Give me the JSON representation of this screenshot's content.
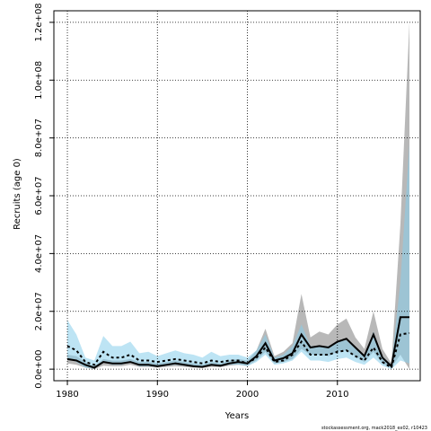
{
  "chart_data": {
    "type": "area",
    "xlabel": "Years",
    "ylabel": "Recruits (age 0)",
    "xlim": [
      1978.5,
      2019.2
    ],
    "ylim": [
      -4000000,
      124000000
    ],
    "x_ticks": [
      1980,
      1990,
      2000,
      2010
    ],
    "x_tick_labels": [
      "1980",
      "1990",
      "2000",
      "2010"
    ],
    "y_ticks": [
      0,
      20000000,
      40000000,
      60000000,
      80000000,
      100000000,
      120000000
    ],
    "y_tick_labels": [
      "0.0e+00",
      "2.0e+07",
      "4.0e+07",
      "6.0e+07",
      "8.0e+07",
      "1.0e+08",
      "1.2e+08"
    ],
    "grid": true,
    "credit": "stockassessment.org, mack2018_ex02, r10423",
    "series": [
      {
        "color": "#000000",
        "band_color": "#555555",
        "x": [
          1980,
          1981,
          1982,
          1983,
          1984,
          1985,
          1986,
          1987,
          1988,
          1989,
          1990,
          1991,
          1992,
          1993,
          1994,
          1995,
          1996,
          1997,
          1998,
          1999,
          2000,
          2001,
          2002,
          2003,
          2004,
          2005,
          2006,
          2007,
          2008,
          2009,
          2010,
          2011,
          2012,
          2013,
          2014,
          2015,
          2016,
          2017,
          2018
        ],
        "values": [
          3500000,
          3000000,
          1500000,
          500000,
          2500000,
          2000000,
          2000000,
          2500000,
          1500000,
          1500000,
          1000000,
          1500000,
          2000000,
          1500000,
          1000000,
          800000,
          1500000,
          1200000,
          2000000,
          2500000,
          2000000,
          4500000,
          9000000,
          3000000,
          3800000,
          5500000,
          12000000,
          7500000,
          8000000,
          7500000,
          9500000,
          10500000,
          7500000,
          4500000,
          12000000,
          4000000,
          1000000,
          18000000,
          18000000
        ],
        "lower": [
          2000000,
          1500000,
          500000,
          0,
          1200000,
          1000000,
          1000000,
          1500000,
          800000,
          800000,
          500000,
          800000,
          1000000,
          800000,
          500000,
          400000,
          800000,
          700000,
          1200000,
          1500000,
          1200000,
          3000000,
          6000000,
          2000000,
          2500000,
          3500000,
          7000000,
          5000000,
          5000000,
          4500000,
          6000000,
          6500000,
          4500000,
          2500000,
          6000000,
          2000000,
          500000,
          5000000,
          0
        ],
        "upper": [
          5000000,
          4500000,
          2500000,
          1000000,
          3500000,
          3000000,
          3000000,
          3500000,
          2500000,
          2500000,
          2000000,
          2500000,
          3000000,
          2500000,
          2000000,
          1500000,
          2500000,
          2000000,
          3000000,
          3500000,
          3000000,
          6500000,
          14000000,
          4500000,
          6000000,
          9000000,
          26000000,
          11000000,
          13000000,
          12000000,
          15500000,
          17500000,
          11000000,
          7000000,
          20000000,
          7000000,
          2000000,
          50000000,
          120000000
        ]
      },
      {
        "color": "#000000",
        "band_color": "#87ceeb",
        "dashed": true,
        "x": [
          1980,
          1981,
          1982,
          1983,
          1984,
          1985,
          1986,
          1987,
          1988,
          1989,
          1990,
          1991,
          1992,
          1993,
          1994,
          1995,
          1996,
          1997,
          1998,
          1999,
          2000,
          2001,
          2002,
          2003,
          2004,
          2005,
          2006,
          2007,
          2008,
          2009,
          2010,
          2011,
          2012,
          2013,
          2014,
          2015,
          2016,
          2017,
          2018
        ],
        "values": [
          8000000,
          6500000,
          2500000,
          1500000,
          6000000,
          4000000,
          4000000,
          5000000,
          3000000,
          3000000,
          2500000,
          3000000,
          3500000,
          3000000,
          2500000,
          2000000,
          3000000,
          2500000,
          3000000,
          3000000,
          2000000,
          4000000,
          7500000,
          2500000,
          3000000,
          5000000,
          9500000,
          5000000,
          5000000,
          5000000,
          6000000,
          6500000,
          4500000,
          3000000,
          7500000,
          2500000,
          500000,
          12000000,
          12500000
        ],
        "lower": [
          4000000,
          2500000,
          500000,
          200000,
          2500000,
          1500000,
          1500000,
          2500000,
          1000000,
          1000000,
          800000,
          1200000,
          1500000,
          1200000,
          1000000,
          800000,
          1500000,
          1000000,
          1500000,
          1500000,
          1000000,
          2500000,
          5000000,
          1500000,
          2000000,
          3000000,
          6000000,
          3000000,
          3000000,
          2500000,
          3500000,
          4000000,
          2500000,
          1500000,
          4000000,
          1200000,
          0,
          3000000,
          2000000
        ],
        "upper": [
          17000000,
          12000000,
          4000000,
          3000000,
          11500000,
          8000000,
          8000000,
          9500000,
          5500000,
          6000000,
          4500000,
          5500000,
          6500000,
          5500000,
          5000000,
          4000000,
          6000000,
          4500000,
          5000000,
          5000000,
          4000000,
          6500000,
          12000000,
          4000000,
          5000000,
          8000000,
          15500000,
          8000000,
          8000000,
          8000000,
          9500000,
          10000000,
          7000000,
          5000000,
          13000000,
          4500000,
          1500000,
          30000000,
          78000000
        ]
      }
    ]
  }
}
